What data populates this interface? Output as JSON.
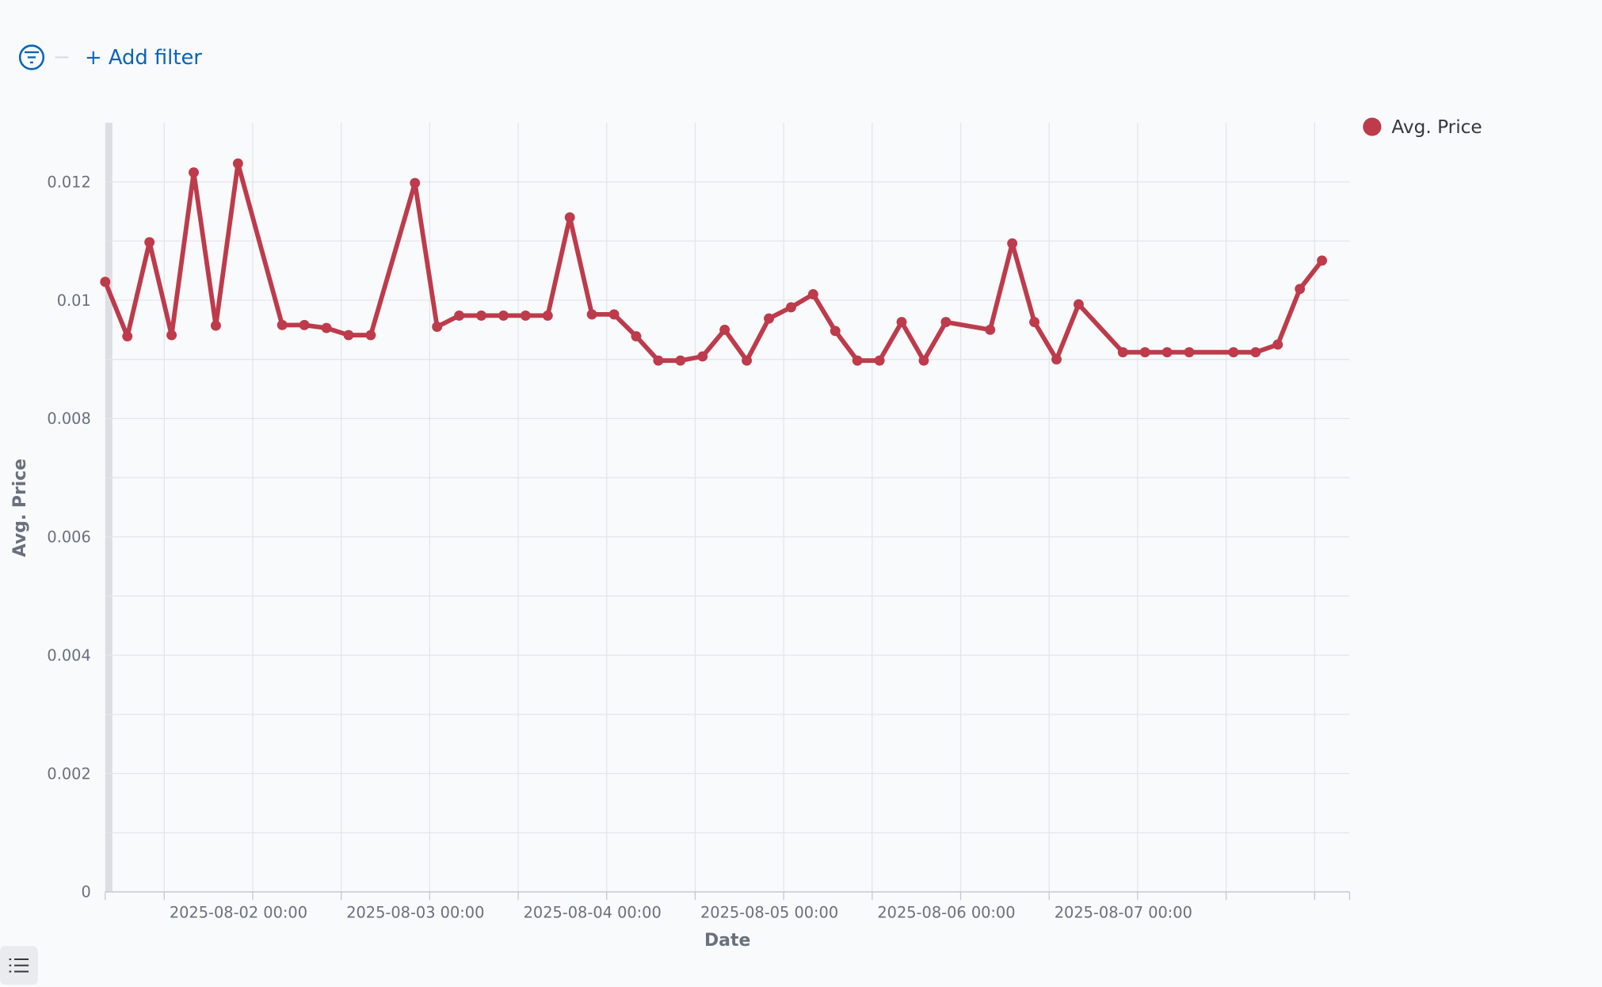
{
  "ui": {
    "add_filter": "+ Add filter"
  },
  "chart_data": {
    "type": "line",
    "x_label": "Date",
    "y_label": "Avg. Price",
    "x": [
      "2025-08-01 04:00",
      "2025-08-01 07:00",
      "2025-08-01 10:00",
      "2025-08-01 13:00",
      "2025-08-01 16:00",
      "2025-08-01 19:00",
      "2025-08-01 22:00",
      "2025-08-02 04:00",
      "2025-08-02 07:00",
      "2025-08-02 10:00",
      "2025-08-02 13:00",
      "2025-08-02 16:00",
      "2025-08-02 22:00",
      "2025-08-03 01:00",
      "2025-08-03 04:00",
      "2025-08-03 07:00",
      "2025-08-03 10:00",
      "2025-08-03 13:00",
      "2025-08-03 16:00",
      "2025-08-03 19:00",
      "2025-08-03 22:00",
      "2025-08-04 01:00",
      "2025-08-04 04:00",
      "2025-08-04 07:00",
      "2025-08-04 10:00",
      "2025-08-04 13:00",
      "2025-08-04 16:00",
      "2025-08-04 19:00",
      "2025-08-04 22:00",
      "2025-08-05 01:00",
      "2025-08-05 04:00",
      "2025-08-05 07:00",
      "2025-08-05 10:00",
      "2025-08-05 13:00",
      "2025-08-05 16:00",
      "2025-08-05 19:00",
      "2025-08-05 22:00",
      "2025-08-06 04:00",
      "2025-08-06 07:00",
      "2025-08-06 10:00",
      "2025-08-06 13:00",
      "2025-08-06 16:00",
      "2025-08-06 22:00",
      "2025-08-07 01:00",
      "2025-08-07 04:00",
      "2025-08-07 07:00",
      "2025-08-07 13:00",
      "2025-08-07 16:00",
      "2025-08-07 19:00",
      "2025-08-07 22:00",
      "2025-08-08 01:00"
    ],
    "series": [
      {
        "name": "Avg. Price",
        "color": "#bd3b4b",
        "values": [
          0.01031,
          0.00939,
          0.01098,
          0.00941,
          0.01216,
          0.00957,
          0.01231,
          0.00958,
          0.00958,
          0.00953,
          0.00941,
          0.00941,
          0.01198,
          0.00955,
          0.00974,
          0.00974,
          0.00974,
          0.00974,
          0.00974,
          0.0114,
          0.00976,
          0.00976,
          0.00939,
          0.00898,
          0.00898,
          0.00905,
          0.0095,
          0.00898,
          0.00969,
          0.00988,
          0.0101,
          0.00948,
          0.00898,
          0.00898,
          0.00963,
          0.00898,
          0.00963,
          0.0095,
          0.01096,
          0.00963,
          0.009,
          0.00993,
          0.00912,
          0.00912,
          0.00912,
          0.00912,
          0.00912,
          0.00912,
          0.00925,
          0.01019,
          0.01067
        ]
      }
    ],
    "xlim": [
      "2025-08-01 04:00",
      "2025-08-08 04:45"
    ],
    "xticks": [
      {
        "value": "2025-08-01 12:00",
        "label": null
      },
      "2025-08-02 00:00",
      {
        "value": "2025-08-02 12:00",
        "label": null
      },
      "2025-08-03 00:00",
      {
        "value": "2025-08-03 12:00",
        "label": null
      },
      "2025-08-04 00:00",
      {
        "value": "2025-08-04 12:00",
        "label": null
      },
      "2025-08-05 00:00",
      {
        "value": "2025-08-05 12:00",
        "label": null
      },
      "2025-08-06 00:00",
      {
        "value": "2025-08-06 12:00",
        "label": null
      },
      "2025-08-07 00:00",
      {
        "value": "2025-08-07 12:00",
        "label": null
      },
      {
        "value": "2025-08-08 00:00",
        "label": null
      }
    ],
    "ylim": [
      0,
      0.013
    ],
    "yticks": [
      0,
      {
        "value": 0.001,
        "label": null
      },
      0.002,
      {
        "value": 0.003,
        "label": null
      },
      0.004,
      {
        "value": 0.005,
        "label": null
      },
      0.006,
      {
        "value": 0.007,
        "label": null
      },
      0.008,
      {
        "value": 0.009,
        "label": null
      },
      0.01,
      {
        "value": 0.011,
        "label": null
      },
      0.012
    ],
    "grid": true,
    "legend": "top-right"
  }
}
